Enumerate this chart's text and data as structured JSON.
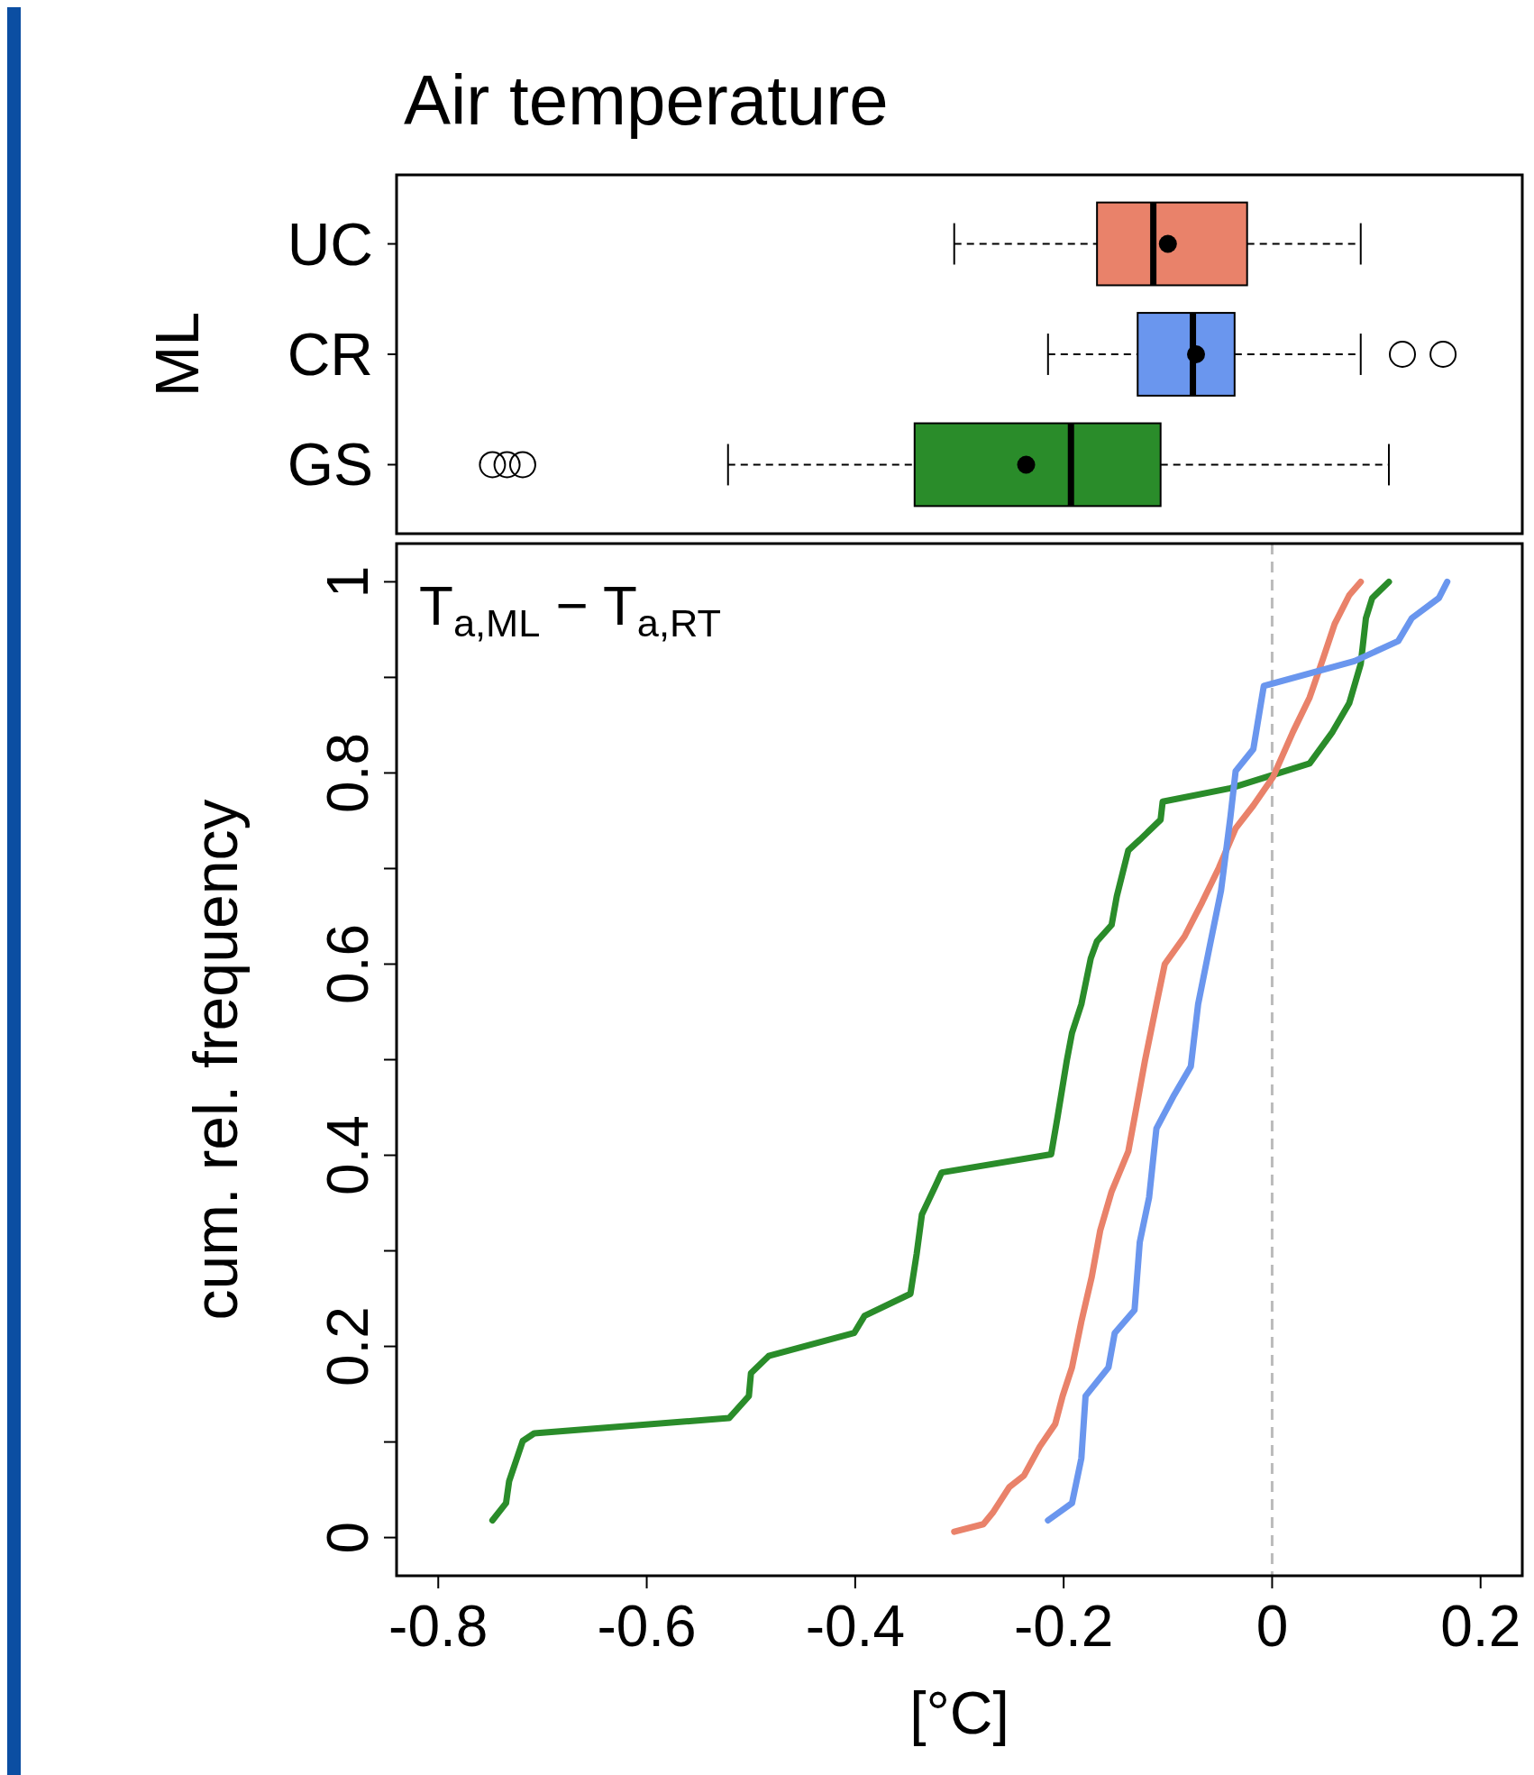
{
  "chart_data": [
    {
      "type": "box",
      "orientation": "horizontal",
      "title": "Air temperature",
      "ylabel": "ML",
      "categories": [
        "UC",
        "CR",
        "GS"
      ],
      "colors": [
        "#e9826a",
        "#6a96ee",
        "#2a8c2a"
      ],
      "xlim": [
        -0.84,
        0.24
      ],
      "tick_labels": "y",
      "boxes": [
        {
          "low": -0.305,
          "q1": -0.168,
          "median": -0.114,
          "q3": -0.024,
          "high": 0.085,
          "mean": -0.1
        },
        {
          "low": -0.215,
          "q1": -0.129,
          "median": -0.076,
          "q3": -0.036,
          "high": 0.085,
          "mean": -0.073,
          "outliers": [
            0.125,
            0.164
          ]
        },
        {
          "low": -0.522,
          "q1": -0.343,
          "median": -0.193,
          "q3": -0.107,
          "high": 0.112,
          "mean": -0.236,
          "outliers": [
            -0.748,
            -0.734,
            -0.719
          ]
        }
      ]
    },
    {
      "type": "line",
      "xlabel": "[°C]",
      "ylabel": "cum. rel. frequency",
      "annotations": [
        "T$_{a,ML}$ − T$_{a,RT}$"
      ],
      "xlim": [
        -0.84,
        0.24
      ],
      "ylim": [
        -0.04,
        1.04
      ],
      "xticks": [
        -0.8,
        -0.6,
        -0.4,
        -0.2,
        0,
        0.2
      ],
      "yticks": [
        0,
        {
          "value": 0.1,
          "label": null
        },
        0.2,
        {
          "value": 0.3,
          "label": null
        },
        0.4,
        {
          "value": 0.5,
          "label": null
        },
        0.6,
        {
          "value": 0.7,
          "label": null
        },
        0.8,
        {
          "value": 0.9,
          "label": null
        },
        1
      ],
      "ref_lines": [
        {
          "axis": "x",
          "value": 0,
          "color": "#bbbbbb",
          "line_style": "dashed"
        }
      ],
      "series": [
        {
          "color": "#2a8c2a",
          "x": [
            -0.748,
            -0.735,
            -0.732,
            -0.719,
            -0.708,
            -0.521,
            -0.502,
            -0.5,
            -0.483,
            -0.401,
            -0.391,
            -0.347,
            -0.341,
            -0.336,
            -0.323,
            -0.317,
            -0.212,
            -0.206,
            -0.197,
            -0.192,
            -0.183,
            -0.174,
            -0.168,
            -0.154,
            -0.149,
            -0.138,
            -0.127,
            -0.107,
            -0.105,
            -0.04,
            0.036,
            0.058,
            0.074,
            0.085,
            0.09,
            0.096,
            0.112
          ],
          "values": [
            0.018,
            0.036,
            0.059,
            0.101,
            0.109,
            0.125,
            0.148,
            0.172,
            0.19,
            0.214,
            0.232,
            0.255,
            0.297,
            0.338,
            0.368,
            0.382,
            0.401,
            0.439,
            0.499,
            0.528,
            0.558,
            0.606,
            0.624,
            0.641,
            0.671,
            0.719,
            0.73,
            0.751,
            0.77,
            0.784,
            0.81,
            0.843,
            0.873,
            0.914,
            0.962,
            0.983,
            1.0
          ]
        },
        {
          "color": "#e9826a",
          "x": [
            -0.305,
            -0.277,
            -0.268,
            -0.252,
            -0.238,
            -0.223,
            -0.208,
            -0.201,
            -0.192,
            -0.183,
            -0.173,
            -0.165,
            -0.154,
            -0.138,
            -0.13,
            -0.122,
            -0.111,
            -0.103,
            -0.084,
            -0.067,
            -0.051,
            -0.035,
            -0.018,
            0.001,
            0.02,
            0.036,
            0.049,
            0.06,
            0.074,
            0.085
          ],
          "values": [
            0.006,
            0.014,
            0.026,
            0.053,
            0.065,
            0.095,
            0.119,
            0.148,
            0.178,
            0.226,
            0.273,
            0.321,
            0.362,
            0.404,
            0.451,
            0.499,
            0.558,
            0.6,
            0.629,
            0.665,
            0.701,
            0.742,
            0.766,
            0.796,
            0.843,
            0.879,
            0.92,
            0.956,
            0.986,
            1.0
          ]
        },
        {
          "color": "#6a96ee",
          "x": [
            -0.215,
            -0.192,
            -0.183,
            -0.179,
            -0.157,
            -0.151,
            -0.132,
            -0.127,
            -0.118,
            -0.111,
            -0.094,
            -0.078,
            -0.071,
            -0.06,
            -0.049,
            -0.04,
            -0.035,
            -0.018,
            -0.008,
            0.079,
            0.121,
            0.134,
            0.16,
            0.168
          ],
          "values": [
            0.018,
            0.036,
            0.083,
            0.148,
            0.178,
            0.214,
            0.238,
            0.309,
            0.356,
            0.428,
            0.463,
            0.493,
            0.558,
            0.618,
            0.677,
            0.754,
            0.802,
            0.825,
            0.891,
            0.917,
            0.938,
            0.962,
            0.983,
            1.0
          ]
        }
      ]
    }
  ]
}
